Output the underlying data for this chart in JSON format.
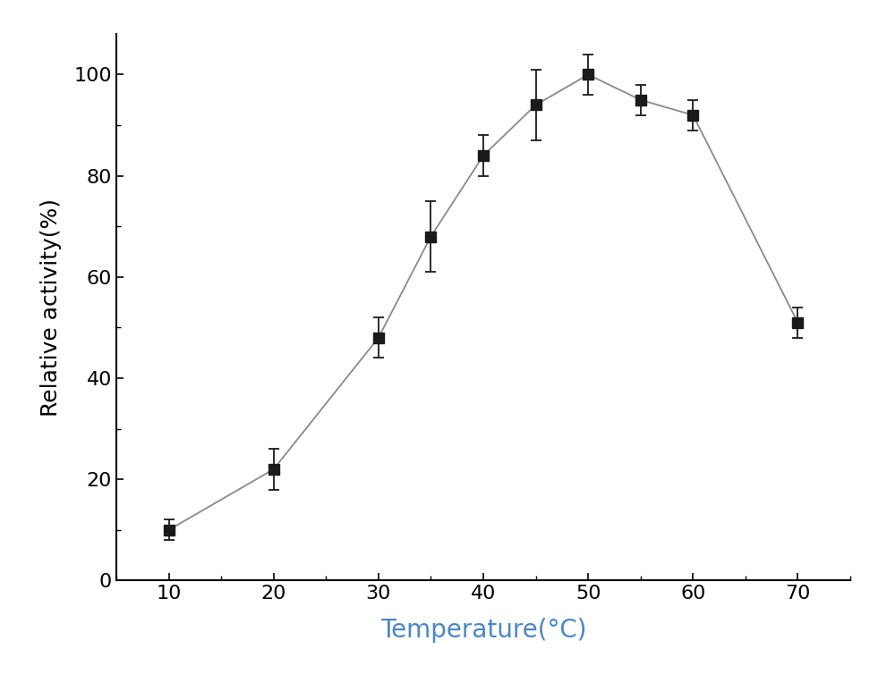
{
  "x": [
    10,
    20,
    30,
    35,
    40,
    45,
    50,
    55,
    60,
    70
  ],
  "y": [
    10,
    22,
    48,
    68,
    84,
    94,
    100,
    95,
    92,
    51
  ],
  "yerr": [
    2,
    4,
    4,
    7,
    4,
    7,
    4,
    3,
    3,
    3
  ],
  "xlabel": "Temperature(°C)",
  "ylabel": "Relative activity(%)",
  "xlim": [
    5,
    75
  ],
  "ylim": [
    0,
    108
  ],
  "xticks": [
    10,
    20,
    30,
    40,
    50,
    60,
    70
  ],
  "yticks": [
    0,
    20,
    40,
    60,
    80,
    100
  ],
  "line_color": "#8a8a8a",
  "marker_color": "#1a1a1a",
  "marker": "s",
  "marker_size": 9,
  "line_width": 1.3,
  "capsize": 4,
  "elinewidth": 1.3,
  "xlabel_fontsize": 20,
  "ylabel_fontsize": 18,
  "tick_fontsize": 16,
  "xlabel_color": "#4a86c8",
  "ylabel_color": "#000000",
  "background_color": "#ffffff",
  "spine_linewidth": 1.5
}
